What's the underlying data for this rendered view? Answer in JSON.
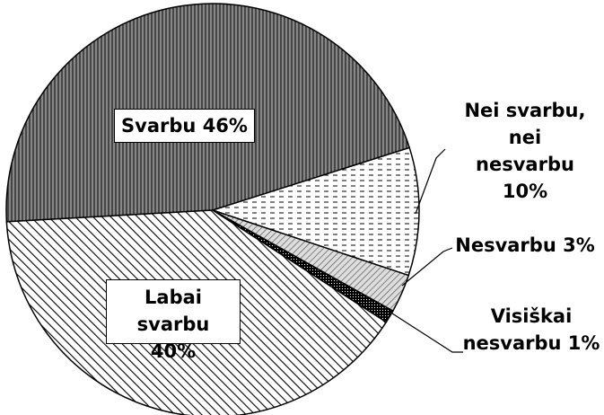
{
  "chart_data": {
    "type": "pie",
    "categories": [
      "Svarbu",
      "Nei svarbu, nei nesvarbu",
      "Nesvarbu",
      "Visiškai nesvarbu",
      "Labai svarbu"
    ],
    "values": [
      46,
      10,
      3,
      1,
      40
    ],
    "value_labels": [
      "46%",
      "10%",
      "3%",
      "1%",
      "40%"
    ]
  }
}
